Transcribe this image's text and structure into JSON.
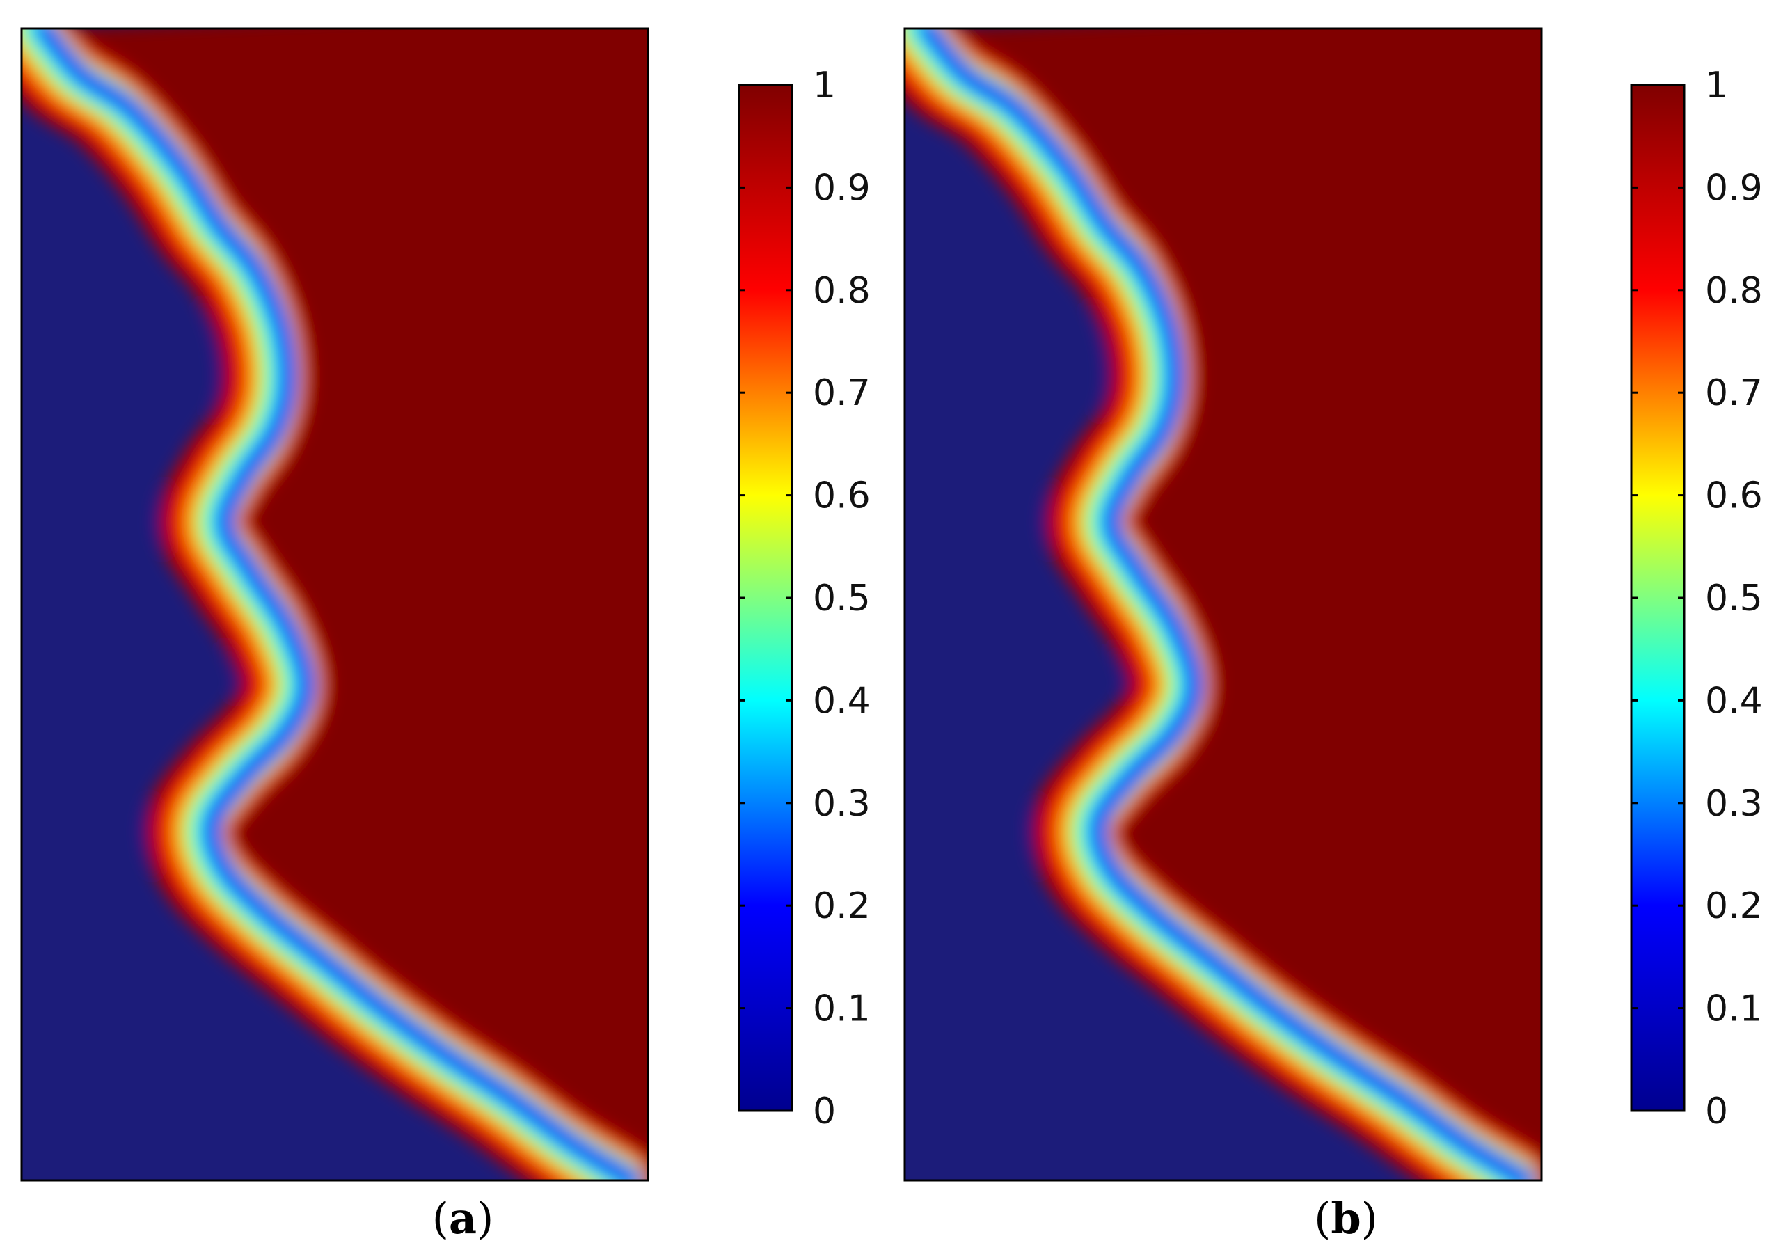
{
  "colormap": {
    "name": "jet",
    "colors": [
      "#00008f",
      "#0000ff",
      "#00ffff",
      "#ffff00",
      "#ff0000",
      "#800000"
    ],
    "background_color": "#1c1c7a"
  },
  "chart_data": [
    {
      "type": "heatmap",
      "panel_label": "a",
      "caption_open": "(",
      "caption_close": ")",
      "colorbar": {
        "range": [
          0,
          1
        ],
        "ticks": [
          0,
          0.1,
          0.2,
          0.3,
          0.4,
          0.5,
          0.6,
          0.7,
          0.8,
          0.9,
          1
        ],
        "tick_labels": [
          "0",
          "0.1",
          "0.2",
          "0.3",
          "0.4",
          "0.5",
          "0.6",
          "0.7",
          "0.8",
          "0.9",
          "1"
        ]
      },
      "field_description": "Concentration field: value near 0 in the upper-left region, rising to 1 at the right edge; the 0.5 contour is a wavy front with four oscillations running from the top-right down to the lower-left corner.",
      "interface_front_fraction": [
        [
          0.04,
          0.0
        ],
        [
          0.1,
          0.04
        ],
        [
          0.18,
          0.07
        ],
        [
          0.26,
          0.12
        ],
        [
          0.32,
          0.17
        ],
        [
          0.38,
          0.21
        ],
        [
          0.42,
          0.26
        ],
        [
          0.43,
          0.31
        ],
        [
          0.41,
          0.35
        ],
        [
          0.36,
          0.39
        ],
        [
          0.33,
          0.43
        ],
        [
          0.37,
          0.47
        ],
        [
          0.43,
          0.52
        ],
        [
          0.46,
          0.57
        ],
        [
          0.43,
          0.61
        ],
        [
          0.36,
          0.65
        ],
        [
          0.31,
          0.69
        ],
        [
          0.33,
          0.73
        ],
        [
          0.4,
          0.77
        ],
        [
          0.49,
          0.81
        ],
        [
          0.58,
          0.85
        ],
        [
          0.68,
          0.89
        ],
        [
          0.79,
          0.93
        ],
        [
          0.89,
          0.97
        ],
        [
          0.98,
          1.0
        ]
      ]
    },
    {
      "type": "heatmap",
      "panel_label": "b",
      "caption_open": "(",
      "caption_close": ")",
      "colorbar": {
        "range": [
          0,
          1
        ],
        "ticks": [
          0,
          0.1,
          0.2,
          0.3,
          0.4,
          0.5,
          0.6,
          0.7,
          0.8,
          0.9,
          1
        ],
        "tick_labels": [
          "0",
          "0.1",
          "0.2",
          "0.3",
          "0.4",
          "0.5",
          "0.6",
          "0.7",
          "0.8",
          "0.9",
          "1"
        ]
      },
      "field_description": "Concentration field nearly identical to panel (a): low values in the upper-left, high values at the right edge, wavy 0.5 front with four oscillations.",
      "interface_front_fraction": [
        [
          0.04,
          0.0
        ],
        [
          0.1,
          0.04
        ],
        [
          0.18,
          0.07
        ],
        [
          0.26,
          0.12
        ],
        [
          0.32,
          0.17
        ],
        [
          0.38,
          0.21
        ],
        [
          0.42,
          0.26
        ],
        [
          0.43,
          0.31
        ],
        [
          0.41,
          0.35
        ],
        [
          0.36,
          0.39
        ],
        [
          0.33,
          0.43
        ],
        [
          0.37,
          0.47
        ],
        [
          0.43,
          0.52
        ],
        [
          0.46,
          0.57
        ],
        [
          0.43,
          0.61
        ],
        [
          0.36,
          0.65
        ],
        [
          0.31,
          0.69
        ],
        [
          0.33,
          0.73
        ],
        [
          0.4,
          0.77
        ],
        [
          0.49,
          0.81
        ],
        [
          0.58,
          0.85
        ],
        [
          0.68,
          0.89
        ],
        [
          0.79,
          0.93
        ],
        [
          0.89,
          0.97
        ],
        [
          0.98,
          1.0
        ]
      ]
    }
  ]
}
